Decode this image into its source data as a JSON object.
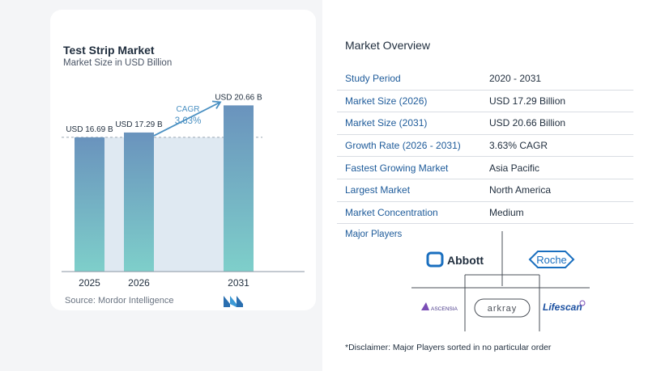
{
  "chart_data": {
    "type": "bar",
    "title": "Test Strip Market",
    "subtitle": "Market Size in USD Billion",
    "categories": [
      "2025",
      "2026",
      "2031"
    ],
    "values": [
      16.69,
      17.29,
      20.66
    ],
    "value_labels": [
      "USD 16.69 B",
      "USD 17.29 B",
      "USD 20.66 B"
    ],
    "ylim": [
      0,
      21
    ],
    "cagr_label": "CAGR",
    "cagr_value": "3.63%",
    "colors": {
      "bar_top": "#6a93bd",
      "bar_bottom": "#7ecfca",
      "band": "#dfe9f2",
      "accent": "#4a90c2"
    },
    "source": "Source:  Mordor Intelligence"
  },
  "overview": {
    "title": "Market Overview",
    "rows": [
      {
        "key": "Study Period",
        "value": "2020 - 2031"
      },
      {
        "key": "Market Size (2026)",
        "value": "USD 17.29 Billion"
      },
      {
        "key": "Market Size (2031)",
        "value": "USD 20.66 Billion"
      },
      {
        "key": "Growth Rate (2026 - 2031)",
        "value": "3.63% CAGR"
      },
      {
        "key": "Fastest Growing Market",
        "value": "Asia Pacific"
      },
      {
        "key": "Largest Market",
        "value": "North America"
      },
      {
        "key": "Market Concentration",
        "value": "Medium"
      }
    ],
    "major_players_title": "Major Players",
    "players": [
      "Abbott",
      "Roche",
      "ASCENSIA",
      "arkray",
      "Lifescan"
    ],
    "disclaimer": "*Disclaimer: Major Players sorted in no particular order"
  }
}
